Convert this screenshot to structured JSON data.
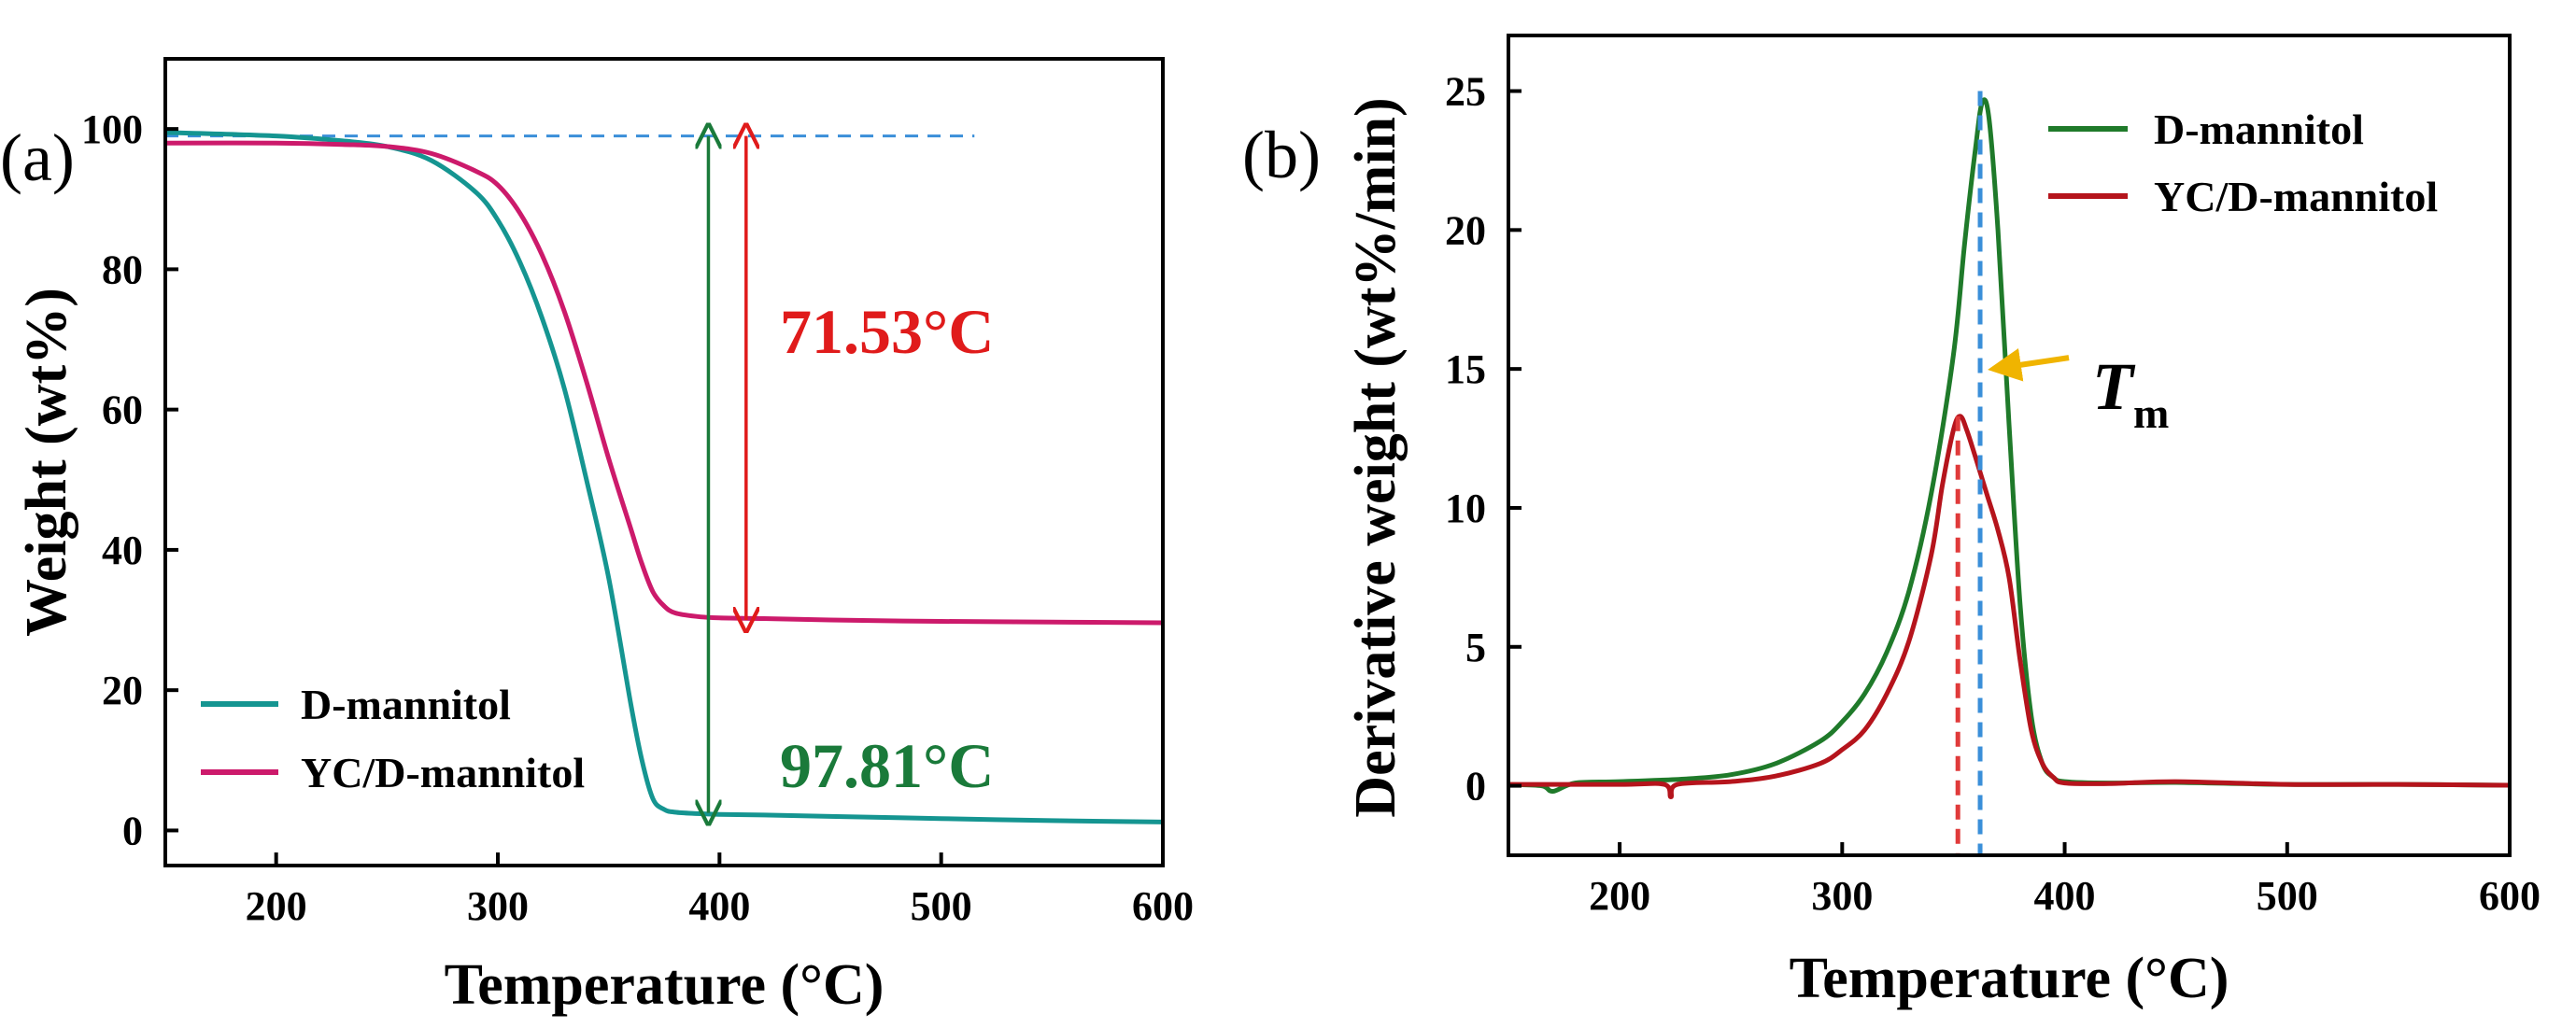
{
  "chart_data": [
    {
      "id": "a",
      "type": "line",
      "panel_label": "(a)",
      "xlabel": "Temperature (°C)",
      "ylabel": "Weight (wt%)",
      "xlim": [
        150,
        600
      ],
      "ylim": [
        -5,
        110
      ],
      "xticks": [
        200,
        300,
        400,
        500,
        600
      ],
      "yticks": [
        0,
        20,
        40,
        60,
        80,
        100
      ],
      "x": [
        150,
        200,
        230,
        250,
        270,
        290,
        300,
        310,
        320,
        330,
        340,
        350,
        360,
        365,
        370,
        375,
        380,
        390,
        400,
        420,
        450,
        500,
        550,
        600
      ],
      "series": [
        {
          "name": "D-mannitol",
          "color": "#159591",
          "values": [
            99.5,
            99,
            98.3,
            97.5,
            95.5,
            91,
            87,
            81,
            73,
            63,
            50,
            36,
            18,
            10,
            4.5,
            3,
            2.6,
            2.4,
            2.3,
            2.2,
            2.0,
            1.7,
            1.4,
            1.2
          ]
        },
        {
          "name": "YC/D-mannitol",
          "color": "#cc1a6b",
          "values": [
            98,
            98,
            97.8,
            97.5,
            96.5,
            94,
            92,
            88,
            82,
            74,
            64,
            53,
            43,
            38,
            34,
            32,
            31,
            30.5,
            30.3,
            30.2,
            30.0,
            29.8,
            29.7,
            29.6
          ]
        }
      ],
      "legend": [
        "D-mannitol",
        "YC/D-mannitol"
      ],
      "legend_position": "bottom-left",
      "reference_line": {
        "y": 99,
        "x_start": 150,
        "x_end": 515,
        "color": "#3a8fd9"
      },
      "arrows": [
        {
          "x": 395,
          "y_from": 99,
          "y_to": 2.5,
          "color": "#1a7a3a"
        },
        {
          "x": 412,
          "y_from": 99,
          "y_to": 30,
          "color": "#e01b1b"
        }
      ],
      "annotations": [
        {
          "text": "71.53°C",
          "color": "#e01b1b"
        },
        {
          "text": "97.81°C",
          "color": "#1a7a3a"
        }
      ]
    },
    {
      "id": "b",
      "type": "line",
      "panel_label": "(b)",
      "xlabel": "Temperature (°C)",
      "ylabel": "Derivative weight (wt%/min)",
      "xlim": [
        150,
        600
      ],
      "ylim": [
        -2.5,
        27
      ],
      "xticks": [
        200,
        300,
        400,
        500,
        600
      ],
      "yticks": [
        0,
        5,
        10,
        15,
        20,
        25
      ],
      "series": [
        {
          "name": "D-mannitol",
          "color": "#1f7a2a",
          "x": [
            150,
            165,
            170,
            180,
            200,
            230,
            250,
            270,
            290,
            300,
            310,
            320,
            330,
            340,
            350,
            355,
            360,
            363,
            366,
            370,
            375,
            380,
            385,
            390,
            395,
            400,
            420,
            450,
            500,
            550,
            600
          ],
          "values": [
            0.05,
            0.0,
            -0.2,
            0.1,
            0.15,
            0.25,
            0.4,
            0.8,
            1.6,
            2.3,
            3.3,
            4.8,
            7.0,
            10.5,
            15.5,
            19.5,
            23.0,
            24.6,
            24.0,
            20.0,
            13.0,
            6.5,
            2.5,
            0.8,
            0.3,
            0.15,
            0.1,
            0.12,
            0.05,
            0.05,
            0.02
          ]
        },
        {
          "name": "YC/D-mannitol",
          "color": "#b5141c",
          "x": [
            150,
            200,
            220,
            223,
            226,
            250,
            270,
            290,
            300,
            310,
            320,
            330,
            340,
            345,
            350,
            353,
            356,
            360,
            365,
            370,
            375,
            380,
            385,
            390,
            395,
            400,
            420,
            450,
            500,
            550,
            600
          ],
          "values": [
            0.05,
            0.05,
            0.05,
            -0.4,
            0.05,
            0.15,
            0.35,
            0.8,
            1.3,
            2.0,
            3.3,
            5.2,
            8.3,
            10.8,
            12.8,
            13.3,
            12.8,
            11.8,
            10.5,
            9.2,
            7.5,
            4.5,
            2.0,
            0.8,
            0.3,
            0.1,
            0.08,
            0.15,
            0.05,
            0.05,
            0.02
          ]
        }
      ],
      "legend": [
        "D-mannitol",
        "YC/D-mannitol"
      ],
      "legend_position": "top-right",
      "reference_lines": [
        {
          "x": 362,
          "y_top": 25,
          "color": "#3a8fd9"
        },
        {
          "x": 352,
          "y_top": 13.3,
          "color": "#e03a3a"
        }
      ],
      "annotation": {
        "symbol": "T",
        "subscript": "m",
        "arrow_color": "#f0b400",
        "points_to": {
          "x": 362,
          "y": 15
        }
      }
    }
  ]
}
